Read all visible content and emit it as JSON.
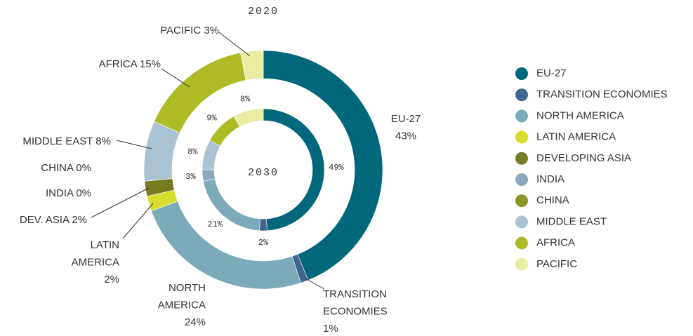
{
  "chart_data": {
    "type": "donut",
    "categories": [
      "EU-27",
      "TRANSITION ECONOMIES",
      "NORTH AMERICA",
      "LATIN AMERICA",
      "DEVELOPING ASIA",
      "INDIA",
      "CHINA",
      "MIDDLE EAST",
      "AFRICA",
      "PACIFIC"
    ],
    "colors": [
      "#00687a",
      "#3f6590",
      "#7baab8",
      "#d5de2c",
      "#777d23",
      "#89a7bd",
      "#8b9228",
      "#a9c3d2",
      "#aebb25",
      "#e9eda2"
    ],
    "series": [
      {
        "name": "2020",
        "values": [
          43,
          1,
          24,
          2,
          2,
          0,
          0,
          8,
          15,
          3
        ],
        "value_labels": [
          "EU-27\n43%",
          "TRANSITION\nECONOMIES\n1%",
          "NORTH\nAMERICA\n24%",
          "LATIN\nAMERICA\n2%",
          "DEV. ASIA 2%",
          "INDIA 0%",
          "CHINA 0%",
          "MIDDLE EAST 8%",
          "AFRICA 15%",
          "PACIFIC 3%"
        ]
      },
      {
        "name": "2030",
        "values": [
          49,
          2,
          21,
          0,
          0,
          3,
          0,
          8,
          9,
          8
        ],
        "value_labels": [
          "49%",
          "2%",
          "21%",
          null,
          null,
          "3%",
          null,
          "8%",
          "9%",
          "8%"
        ]
      }
    ],
    "legend": "right"
  }
}
